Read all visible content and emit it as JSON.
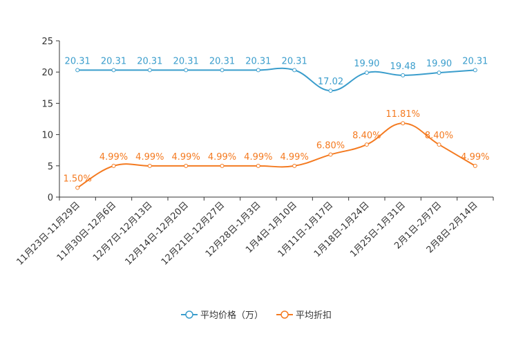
{
  "chart_data": {
    "type": "line",
    "title": "",
    "xlabel": "",
    "ylabel": "",
    "ylim": [
      0,
      25
    ],
    "yticks": [
      0,
      5,
      10,
      15,
      20,
      25
    ],
    "grid": false,
    "legend_position": "bottom-center",
    "categories": [
      "11月23日-11月29日",
      "11月30日-12月6日",
      "12月7日-12月13日",
      "12月14日-12月20日",
      "12月21日-12月27日",
      "12月28日-1月3日",
      "1月4日-1月10日",
      "1月11日-1月17日",
      "1月18日-1月24日",
      "1月25日-1月31日",
      "2月1日-2月7日",
      "2月8日-2月14日"
    ],
    "series": [
      {
        "name": "平均价格（万）",
        "color": "#3a9dcc",
        "values": [
          20.31,
          20.31,
          20.31,
          20.31,
          20.31,
          20.31,
          20.31,
          17.02,
          19.9,
          19.48,
          19.9,
          20.31
        ],
        "labels": [
          "20.31",
          "20.31",
          "20.31",
          "20.31",
          "20.31",
          "20.31",
          "20.31",
          "17.02",
          "19.90",
          "19.48",
          "19.90",
          "20.31"
        ]
      },
      {
        "name": "平均折扣",
        "color": "#f47a20",
        "values": [
          1.5,
          4.99,
          4.99,
          4.99,
          4.99,
          4.99,
          4.99,
          6.8,
          8.4,
          11.81,
          8.4,
          4.99
        ],
        "labels": [
          "1.50%",
          "4.99%",
          "4.99%",
          "4.99%",
          "4.99%",
          "4.99%",
          "4.99%",
          "6.80%",
          "8.40%",
          "11.81%",
          "8.40%",
          "4.99%"
        ]
      }
    ]
  }
}
